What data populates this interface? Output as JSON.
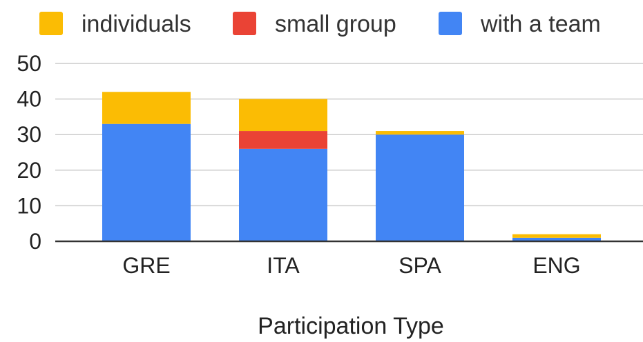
{
  "chart_data": {
    "type": "bar",
    "stacked": true,
    "categories": [
      "GRE",
      "ITA",
      "SPA",
      "ENG"
    ],
    "series": [
      {
        "name": "with a team",
        "values": [
          33,
          26,
          30,
          1
        ],
        "color": "#4285F4"
      },
      {
        "name": "small group",
        "values": [
          0,
          5,
          0,
          0
        ],
        "color": "#EA4335"
      },
      {
        "name": "individuals",
        "values": [
          9,
          9,
          1,
          1
        ],
        "color": "#FBBC04"
      }
    ],
    "legend": [
      {
        "name": "individuals",
        "color": "#FBBC04"
      },
      {
        "name": "small group",
        "color": "#EA4335"
      },
      {
        "name": "with a team",
        "color": "#4285F4"
      }
    ],
    "legend_position": "top",
    "title": "",
    "xlabel": "Participation Type",
    "ylabel": "",
    "ylim": [
      0,
      50
    ],
    "yticks": [
      0,
      10,
      20,
      30,
      40,
      50
    ],
    "grid": true
  }
}
